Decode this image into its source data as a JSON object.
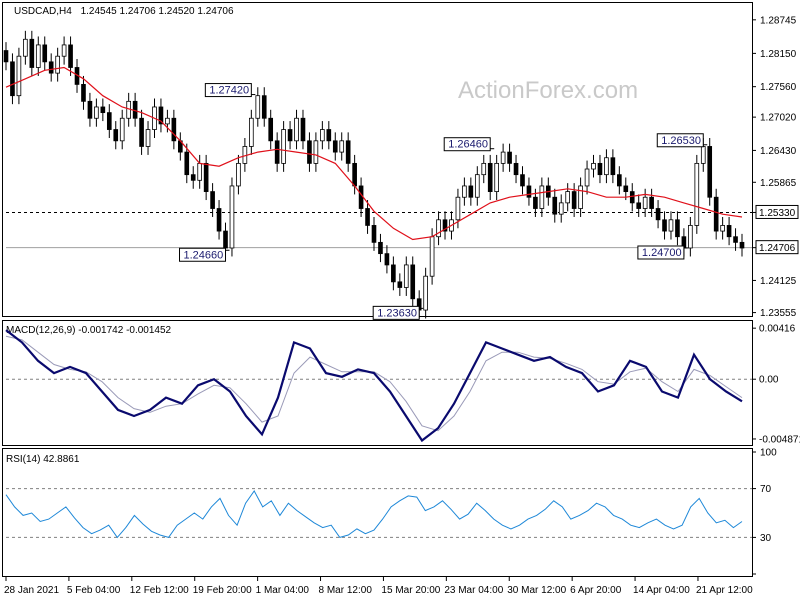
{
  "header": {
    "symbol": "USDCAD,H4",
    "ohlc": "1.24545 1.24706 1.24520 1.24706"
  },
  "watermark": "ActionForex.com",
  "colors": {
    "candle": "#000000",
    "ma": "#e0101a",
    "macd": "#0a0a6e",
    "macd_signal": "#9a9ab8",
    "rsi": "#1e88d8",
    "grid_dash": "#808080"
  },
  "chart_data": [
    {
      "type": "line",
      "title": "USDCAD,H4 1.24545 1.24706 1.24520 1.24706",
      "x_labels": [
        "28 Jan 2021",
        "5 Feb 04:00",
        "12 Feb 12:00",
        "19 Feb 20:00",
        "1 Mar 04:00",
        "8 Mar 12:00",
        "15 Mar 20:00",
        "23 Mar 04:00",
        "30 Mar 12:00",
        "6 Apr 20:00",
        "14 Apr 04:00",
        "21 Apr 12:00"
      ],
      "y_ticks": [
        "1.28745",
        "1.28150",
        "1.27560",
        "1.27020",
        "1.26430",
        "1.25865",
        "1.25330",
        "1.24706",
        "1.24125",
        "1.23555"
      ],
      "ylim": [
        1.2353,
        1.2899
      ],
      "series": [
        {
          "role": "close",
          "values": [
            1.28,
            1.274,
            1.281,
            1.284,
            1.279,
            1.283,
            1.28,
            1.278,
            1.281,
            1.283,
            1.279,
            1.276,
            1.273,
            1.27,
            1.272,
            1.271,
            1.268,
            1.266,
            1.27,
            1.273,
            1.27,
            1.265,
            1.268,
            1.272,
            1.269,
            1.27,
            1.266,
            1.264,
            1.26,
            1.259,
            1.262,
            1.257,
            1.254,
            1.25,
            1.247,
            1.258,
            1.262,
            1.265,
            1.27,
            1.274,
            1.27,
            1.266,
            1.262,
            1.268,
            1.266,
            1.27,
            1.266,
            1.262,
            1.266,
            1.268,
            1.266,
            1.264,
            1.266,
            1.262,
            1.258,
            1.254,
            1.251,
            1.248,
            1.246,
            1.244,
            1.241,
            1.24,
            1.244,
            1.238,
            1.236,
            1.242,
            1.249,
            1.252,
            1.25,
            1.252,
            1.256,
            1.258,
            1.256,
            1.26,
            1.262,
            1.257,
            1.262,
            1.264,
            1.262,
            1.26,
            1.258,
            1.256,
            1.254,
            1.258,
            1.256,
            1.253,
            1.255,
            1.257,
            1.254,
            1.258,
            1.261,
            1.262,
            1.26,
            1.263,
            1.26,
            1.258,
            1.257,
            1.255,
            1.254,
            1.256,
            1.254,
            1.252,
            1.25,
            1.252,
            1.249,
            1.247,
            1.251,
            1.262,
            1.265,
            1.256,
            1.25,
            1.251,
            1.249,
            1.248,
            1.247
          ]
        },
        {
          "role": "moving-average",
          "values": [
            1.2755,
            1.277,
            1.2785,
            1.279,
            1.277,
            1.274,
            1.272,
            1.271,
            1.2695,
            1.266,
            1.262,
            1.2615,
            1.263,
            1.264,
            1.2645,
            1.264,
            1.2635,
            1.262,
            1.258,
            1.2535,
            1.2505,
            1.2485,
            1.249,
            1.251,
            1.253,
            1.255,
            1.256,
            1.2565,
            1.257,
            1.2575,
            1.257,
            1.256,
            1.256,
            1.2565,
            1.256,
            1.255,
            1.254,
            1.253,
            1.2525
          ]
        },
        {
          "role": "levels",
          "values": [
            1.2533,
            1.24706
          ]
        }
      ],
      "annotations": [
        "1.27420",
        "1.24660",
        "1.23630",
        "1.26460",
        "1.26530",
        "1.24700"
      ],
      "price_tags": [
        "1.25330",
        "1.24706"
      ]
    },
    {
      "type": "line",
      "title": "MACD(12,26,9) -0.001742 -0.001452",
      "y_ticks": [
        "0.00416",
        "0.00",
        "-0.004871"
      ],
      "ylim": [
        -0.0052,
        0.0045
      ],
      "series": [
        {
          "role": "macd",
          "values": [
            0.004,
            0.003,
            0.0015,
            0.0005,
            0.001,
            0.0005,
            -0.001,
            -0.0025,
            -0.003,
            -0.0025,
            -0.0015,
            -0.002,
            -0.0005,
            0.0,
            -0.001,
            -0.003,
            -0.0045,
            -0.0015,
            0.003,
            0.0025,
            0.0005,
            0.0002,
            0.0008,
            0.0005,
            -0.001,
            -0.003,
            -0.005,
            -0.004,
            -0.002,
            0.0005,
            0.003,
            0.0025,
            0.002,
            0.0015,
            0.0018,
            0.001,
            0.0005,
            -0.001,
            -0.0005,
            0.0015,
            0.001,
            -0.001,
            -0.0015,
            0.002,
            0.0,
            -0.001,
            -0.0018
          ]
        },
        {
          "role": "signal",
          "values": [
            0.0035,
            0.0032,
            0.0022,
            0.0012,
            0.0008,
            0.0006,
            -0.0002,
            -0.0015,
            -0.0024,
            -0.0027,
            -0.0022,
            -0.002,
            -0.0012,
            -0.0005,
            -0.0007,
            -0.002,
            -0.0035,
            -0.003,
            0.0005,
            0.0018,
            0.0012,
            0.0006,
            0.0006,
            0.0006,
            -0.0002,
            -0.0018,
            -0.0038,
            -0.0042,
            -0.003,
            -0.001,
            0.0015,
            0.0022,
            0.0022,
            0.0018,
            0.0017,
            0.0013,
            0.0008,
            -0.0002,
            -0.0004,
            0.0006,
            0.0009,
            -0.0002,
            -0.001,
            0.0008,
            0.0003,
            -0.0006,
            -0.0015
          ]
        }
      ]
    },
    {
      "type": "line",
      "title": "RSI(14) 42.8861",
      "y_ticks": [
        "100",
        "70",
        "30",
        "0"
      ],
      "ylim": [
        0,
        100
      ],
      "levels": [
        70,
        30
      ],
      "series": [
        {
          "role": "rsi",
          "values": [
            65,
            55,
            48,
            50,
            43,
            45,
            50,
            55,
            46,
            38,
            33,
            36,
            40,
            30,
            38,
            48,
            41,
            35,
            32,
            30,
            40,
            45,
            50,
            45,
            55,
            62,
            48,
            40,
            58,
            68,
            55,
            60,
            48,
            58,
            52,
            47,
            42,
            38,
            40,
            30,
            32,
            37,
            33,
            36,
            45,
            55,
            60,
            64,
            63,
            52,
            55,
            60,
            53,
            45,
            49,
            58,
            52,
            45,
            40,
            37,
            40,
            45,
            48,
            53,
            60,
            55,
            45,
            48,
            52,
            58,
            55,
            48,
            45,
            40,
            38,
            42,
            45,
            40,
            37,
            40,
            55,
            62,
            50,
            42,
            44,
            38,
            43
          ]
        }
      ]
    }
  ]
}
